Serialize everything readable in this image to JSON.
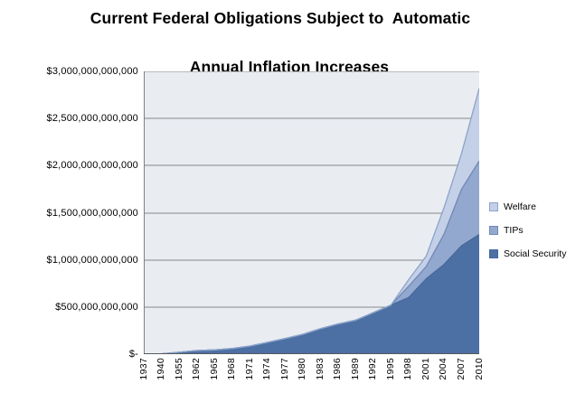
{
  "title": {
    "line1": "Current Federal Obligations Subject to  Automatic",
    "line2": "Annual Inflation Increases"
  },
  "chart_data": {
    "type": "area",
    "stacked": true,
    "unit": "USD trillions",
    "title": "Current Federal Obligations Subject to  Automatic Annual Inflation Increases",
    "xlabel": "",
    "ylabel": "",
    "categories": [
      "1937",
      "1940",
      "1955",
      "1962",
      "1965",
      "1968",
      "1971",
      "1974",
      "1977",
      "1980",
      "1983",
      "1986",
      "1989",
      "1992",
      "1995",
      "1998",
      "2001",
      "2004",
      "2007",
      "2010"
    ],
    "series": [
      {
        "name": "Welfare",
        "fill": "#C4D0E7",
        "edge": "#8BA3C9",
        "values": [
          0,
          0,
          0,
          0,
          0,
          0,
          0,
          0,
          0,
          0,
          0,
          0,
          0,
          0,
          0,
          0.07,
          0.11,
          0.28,
          0.38,
          0.77
        ]
      },
      {
        "name": "TIPs",
        "fill": "#92A8CE",
        "edge": "#7288B5",
        "values": [
          0,
          0,
          0,
          0,
          0,
          0,
          0,
          0,
          0,
          0,
          0,
          0,
          0,
          0,
          0,
          0.12,
          0.13,
          0.32,
          0.6,
          0.78
        ]
      },
      {
        "name": "Social Security",
        "fill": "#4C70A4",
        "edge": "#46699D",
        "values": [
          0.001,
          0.003,
          0.02,
          0.038,
          0.045,
          0.06,
          0.085,
          0.125,
          0.165,
          0.21,
          0.27,
          0.32,
          0.36,
          0.44,
          0.52,
          0.6,
          0.8,
          0.95,
          1.15,
          1.27
        ]
      }
    ],
    "stack_bottom_to_top": [
      "Social Security",
      "TIPs",
      "Welfare"
    ],
    "ylim": [
      0,
      3
    ],
    "ytick_values": [
      0,
      0.5,
      1,
      1.5,
      2,
      2.5,
      3
    ],
    "ytick_labels": [
      "$-",
      "$500,000,000,000",
      "$1,000,000,000,000",
      "$1,500,000,000,000",
      "$2,000,000,000,000",
      "$2,500,000,000,000",
      "$3,000,000,000,000"
    ],
    "grid": true,
    "legend_position": "right",
    "colors": {
      "plot_bg": "#E9EDF2",
      "grid_line": "#878787",
      "axis_line_left": "#808080",
      "axis_line_bottom": "#595959",
      "text": "#000000"
    }
  }
}
